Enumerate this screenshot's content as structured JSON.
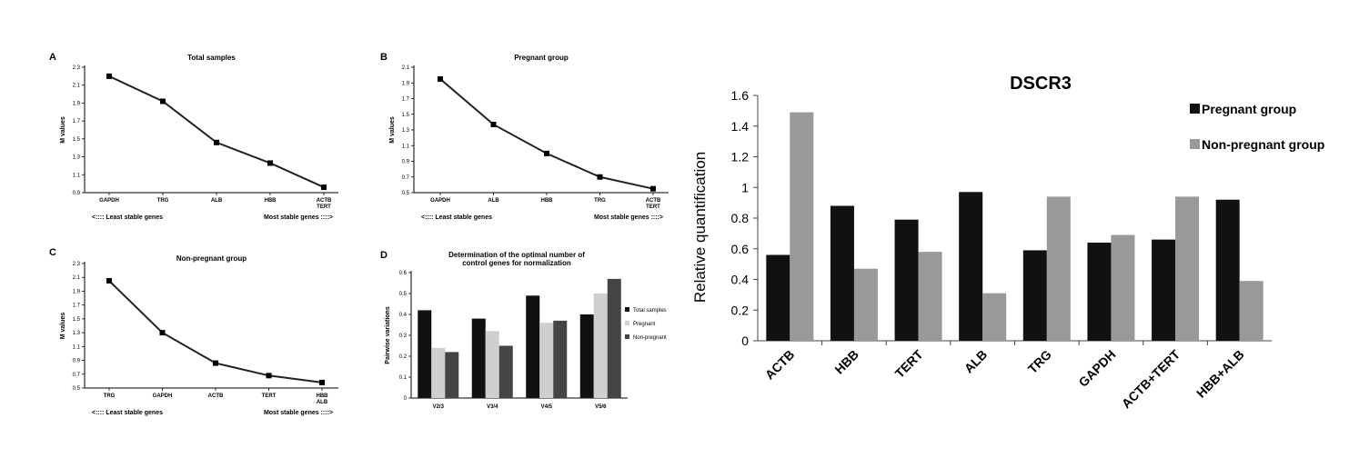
{
  "panels": {
    "a": {
      "letter": "A",
      "chart_data": {
        "type": "line",
        "title": "Total samples",
        "ylabel": "M values",
        "categories": [
          "GAPDH",
          "TRG",
          "ALB",
          "HBB",
          "ACTB\nTERT"
        ],
        "values": [
          2.2,
          1.92,
          1.46,
          1.23,
          0.96
        ],
        "ylim": [
          0.9,
          2.3
        ],
        "yticks": [
          0.9,
          1.1,
          1.3,
          1.5,
          1.7,
          1.9,
          2.1,
          2.3
        ],
        "ytick_labels": [
          "0.9",
          "1.1",
          "1.3",
          "1.5",
          "1.7",
          "1.9",
          "2.1",
          "2.3"
        ],
        "left_note": "<::::  Least stable genes",
        "right_note": "Most stable genes ::::>",
        "grid": false
      }
    },
    "b": {
      "letter": "B",
      "chart_data": {
        "type": "line",
        "title": "Pregnant group",
        "ylabel": "M values",
        "categories": [
          "GAPDH",
          "ALB",
          "HBB",
          "TRG",
          "ACTB\nTERT"
        ],
        "values": [
          1.95,
          1.37,
          1.0,
          0.7,
          0.55
        ],
        "ylim": [
          0.5,
          2.1
        ],
        "yticks": [
          0.5,
          0.7,
          0.9,
          1.1,
          1.3,
          1.5,
          1.7,
          1.9,
          2.1
        ],
        "ytick_labels": [
          "0.5",
          "0.7",
          "0.9",
          "1.1",
          "1.3",
          "1.5",
          "1.7",
          "1.9",
          "2.1"
        ],
        "left_note": "<::::  Least stable genes",
        "right_note": "Most stable genes ::::>",
        "grid": false
      }
    },
    "c": {
      "letter": "C",
      "chart_data": {
        "type": "line",
        "title": "Non-pregnant group",
        "ylabel": "M values",
        "categories": [
          "TRG",
          "GAPDH",
          "ACTB",
          "TERT",
          "HBB\nALB"
        ],
        "values": [
          2.05,
          1.3,
          0.86,
          0.68,
          0.58
        ],
        "ylim": [
          0.5,
          2.3
        ],
        "yticks": [
          0.5,
          0.7,
          0.9,
          1.1,
          1.3,
          1.5,
          1.7,
          1.9,
          2.1,
          2.3
        ],
        "ytick_labels": [
          "0.5",
          "0.7",
          "0.9",
          "1.1",
          "1.3",
          "1.5",
          "1.7",
          "1.9",
          "2.1",
          "2.3"
        ],
        "left_note": "<::::  Least stable genes",
        "right_note": "Most stable genes ::::>",
        "grid": false
      }
    },
    "d": {
      "letter": "D",
      "chart_data": {
        "type": "bar",
        "title": "Determination of the optimal number of\ncontrol genes for normalization",
        "ylabel": "Pairwise variations",
        "categories": [
          "V2/3",
          "V3/4",
          "V4/5",
          "V5/6"
        ],
        "series": [
          {
            "name": "Total samples",
            "values": [
              0.42,
              0.38,
              0.49,
              0.4
            ],
            "color": "#111111"
          },
          {
            "name": "Pregnant",
            "values": [
              0.24,
              0.32,
              0.36,
              0.5
            ],
            "color": "#cfcfcf"
          },
          {
            "name": "Non-pregnant",
            "values": [
              0.22,
              0.25,
              0.37,
              0.57
            ],
            "color": "#444444"
          }
        ],
        "ylim": [
          0,
          0.6
        ],
        "yticks": [
          0,
          0.1,
          0.2,
          0.3,
          0.4,
          0.5,
          0.6
        ],
        "ytick_labels": [
          "0",
          "0.1",
          "0.2",
          "0.3",
          "0.4",
          "0.5",
          "0.6"
        ],
        "legend": "right",
        "grid": false
      }
    },
    "e": {
      "chart_data": {
        "type": "bar",
        "title": "DSCR3",
        "ylabel": "Relative quantification",
        "categories": [
          "ACTB",
          "HBB",
          "TERT",
          "ALB",
          "TRG",
          "GAPDH",
          "ACTB+TERT",
          "HBB+ALB"
        ],
        "series": [
          {
            "name": "Pregnant group",
            "values": [
              0.56,
              0.88,
              0.79,
              0.97,
              0.59,
              0.64,
              0.66,
              0.92
            ],
            "color": "#111111"
          },
          {
            "name": "Non-pregnant group",
            "values": [
              1.49,
              0.47,
              0.58,
              0.31,
              0.94,
              0.69,
              0.94,
              0.39
            ],
            "color": "#999999"
          }
        ],
        "ylim": [
          0,
          1.6
        ],
        "yticks": [
          0,
          0.2,
          0.4,
          0.6,
          0.8,
          1,
          1.2,
          1.4,
          1.6
        ],
        "ytick_labels": [
          "0",
          "0.2",
          "0.4",
          "0.6",
          "0.8",
          "1",
          "1.2",
          "1.4",
          "1.6"
        ],
        "legend": "top-right",
        "grid": false
      }
    }
  }
}
